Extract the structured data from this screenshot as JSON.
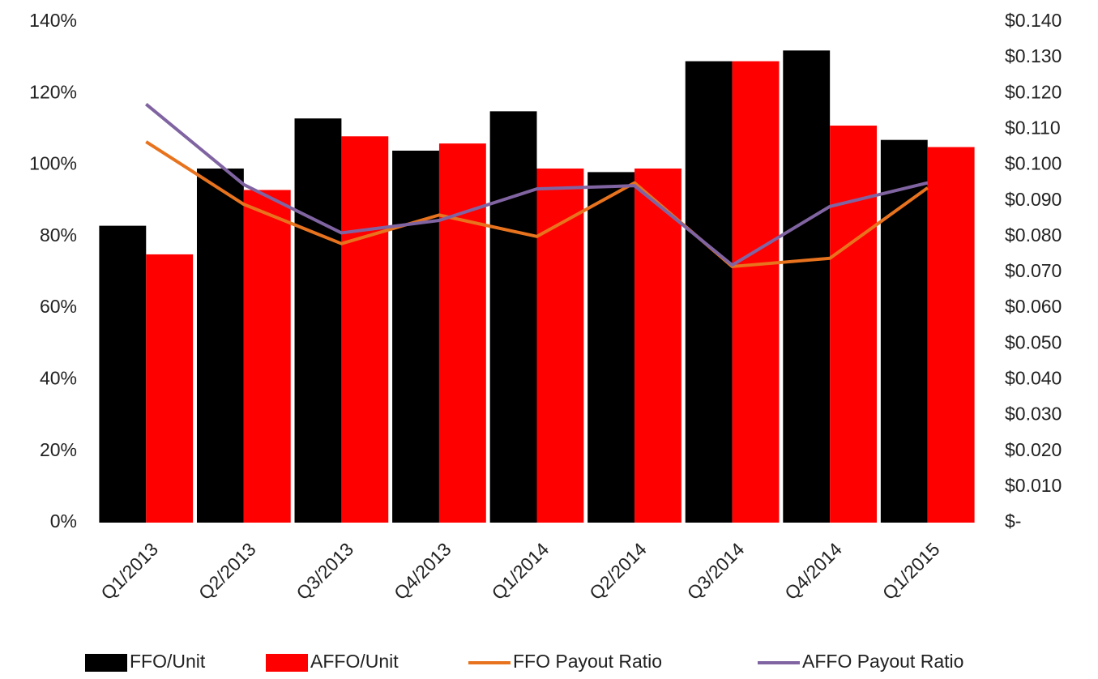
{
  "chart_data": {
    "type": "bar",
    "categories": [
      "Q1/2013",
      "Q2/2013",
      "Q3/2013",
      "Q4/2013",
      "Q1/2014",
      "Q2/2014",
      "Q3/2014",
      "Q4/2014",
      "Q1/2015"
    ],
    "series": [
      {
        "name": "FFO/Unit",
        "type": "bar",
        "axis": "y2",
        "color": "#000000",
        "values": [
          0.083,
          0.099,
          0.113,
          0.104,
          0.115,
          0.098,
          0.129,
          0.132,
          0.107
        ]
      },
      {
        "name": "AFFO/Unit",
        "type": "bar",
        "axis": "y2",
        "color": "#ff0000",
        "values": [
          0.075,
          0.093,
          0.108,
          0.106,
          0.099,
          0.099,
          0.129,
          0.111,
          0.105
        ]
      },
      {
        "name": "FFO Payout Ratio",
        "type": "line",
        "axis": "y",
        "color": "#e8731e",
        "values": [
          106.5,
          89,
          78,
          86,
          80,
          95,
          71.6,
          73.9,
          93.6
        ]
      },
      {
        "name": "AFFO Payout Ratio",
        "type": "line",
        "axis": "y",
        "color": "#8064a2",
        "values": [
          117,
          94.5,
          81,
          84.5,
          93.3,
          94.2,
          72,
          88.4,
          95
        ]
      }
    ],
    "ylim": [
      0,
      140
    ],
    "yticks": [
      {
        "value": 0,
        "label": "0%"
      },
      {
        "value": 20,
        "label": "20%"
      },
      {
        "value": 40,
        "label": "40%"
      },
      {
        "value": 60,
        "label": "60%"
      },
      {
        "value": 80,
        "label": "80%"
      },
      {
        "value": 100,
        "label": "100%"
      },
      {
        "value": 120,
        "label": "120%"
      },
      {
        "value": 140,
        "label": "140%"
      }
    ],
    "y2lim": [
      0,
      0.14
    ],
    "y2ticks": [
      {
        "value": 0,
        "label": "$-"
      },
      {
        "value": 0.01,
        "label": "$0.010"
      },
      {
        "value": 0.02,
        "label": "$0.020"
      },
      {
        "value": 0.03,
        "label": "$0.030"
      },
      {
        "value": 0.04,
        "label": "$0.040"
      },
      {
        "value": 0.05,
        "label": "$0.050"
      },
      {
        "value": 0.06,
        "label": "$0.060"
      },
      {
        "value": 0.07,
        "label": "$0.070"
      },
      {
        "value": 0.08,
        "label": "$0.080"
      },
      {
        "value": 0.09,
        "label": "$0.090"
      },
      {
        "value": 0.1,
        "label": "$0.100"
      },
      {
        "value": 0.11,
        "label": "$0.110"
      },
      {
        "value": 0.12,
        "label": "$0.120"
      },
      {
        "value": 0.13,
        "label": "$0.130"
      },
      {
        "value": 0.14,
        "label": "$0.140"
      }
    ],
    "grid": false,
    "legend": "bottom"
  }
}
